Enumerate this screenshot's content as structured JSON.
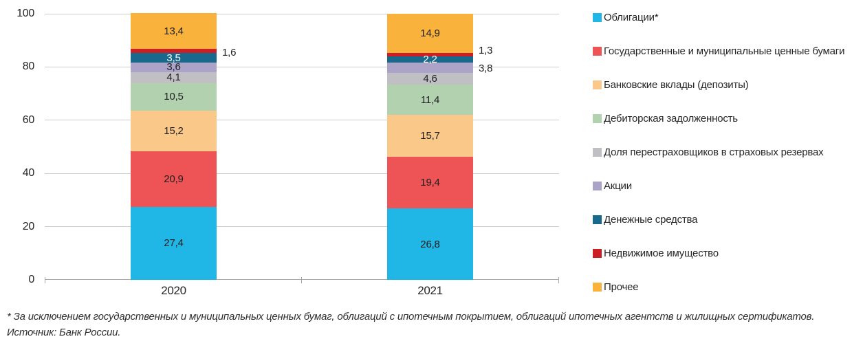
{
  "chart_data": {
    "type": "bar",
    "stacked": true,
    "title": "",
    "xlabel": "",
    "ylabel": "",
    "categories": [
      "2020",
      "2021"
    ],
    "ylim": [
      0,
      100
    ],
    "yticks": [
      0,
      20,
      40,
      60,
      80,
      100
    ],
    "grid": true,
    "legend_position": "right",
    "series": [
      {
        "name": "Облигации*",
        "color": "#20B7E6",
        "text_color": "#1f1f1f",
        "values": [
          27.4,
          26.8
        ],
        "labels": [
          "27,4",
          "26,8"
        ],
        "outside": [
          false,
          false
        ],
        "dy": [
          0,
          0
        ]
      },
      {
        "name": "Государственные и муниципальные ценные бумаги",
        "color": "#EE5456",
        "text_color": "#1f1f1f",
        "values": [
          20.9,
          19.4
        ],
        "labels": [
          "20,9",
          "19,4"
        ],
        "outside": [
          false,
          false
        ],
        "dy": [
          0,
          0
        ]
      },
      {
        "name": "Банковские вклады (депозиты)",
        "color": "#FAC888",
        "text_color": "#1f1f1f",
        "values": [
          15.2,
          15.7
        ],
        "labels": [
          "15,2",
          "15,7"
        ],
        "outside": [
          false,
          false
        ],
        "dy": [
          0,
          0
        ]
      },
      {
        "name": "Дебиторская задолженность",
        "color": "#B1D1AF",
        "text_color": "#1f1f1f",
        "values": [
          10.5,
          11.4
        ],
        "labels": [
          "10,5",
          "11,4"
        ],
        "outside": [
          false,
          false
        ],
        "dy": [
          0,
          0
        ]
      },
      {
        "name": "Доля перестраховщиков в страховых резервах",
        "color": "#C0BFC3",
        "text_color": "#1f1f1f",
        "values": [
          4.1,
          4.6
        ],
        "labels": [
          "4,1",
          "4,6"
        ],
        "outside": [
          false,
          false
        ],
        "dy": [
          0,
          0
        ]
      },
      {
        "name": "Акции",
        "color": "#ABA3C8",
        "text_color": "#1f1f1f",
        "values": [
          3.6,
          3.8
        ],
        "labels": [
          "3,6",
          "3,8"
        ],
        "outside": [
          false,
          true
        ],
        "dy": [
          0,
          2
        ]
      },
      {
        "name": "Денежные средства",
        "color": "#19698C",
        "text_color": "#ffffff",
        "values": [
          3.5,
          2.2
        ],
        "labels": [
          "3,5",
          "2,2"
        ],
        "outside": [
          false,
          false
        ],
        "dy": [
          0,
          0
        ]
      },
      {
        "name": "Недвижимое имущество",
        "color": "#CC1F25",
        "text_color": "#1f1f1f",
        "values": [
          1.6,
          1.3
        ],
        "labels": [
          "1,6",
          "1,3"
        ],
        "outside": [
          true,
          true
        ],
        "dy": [
          3,
          -6
        ]
      },
      {
        "name": "Прочее",
        "color": "#F9B23C",
        "text_color": "#1f1f1f",
        "values": [
          13.4,
          14.9
        ],
        "labels": [
          "13,4",
          "14,9"
        ],
        "outside": [
          false,
          false
        ],
        "dy": [
          0,
          0
        ]
      }
    ]
  },
  "footnotes": {
    "asterisk": "* За исключением государственных и муниципальных ценных бумаг, облигаций с ипотечным покрытием, облигаций ипотечных агентств и жилищных сертификатов.",
    "source": "Источник: Банк России."
  }
}
